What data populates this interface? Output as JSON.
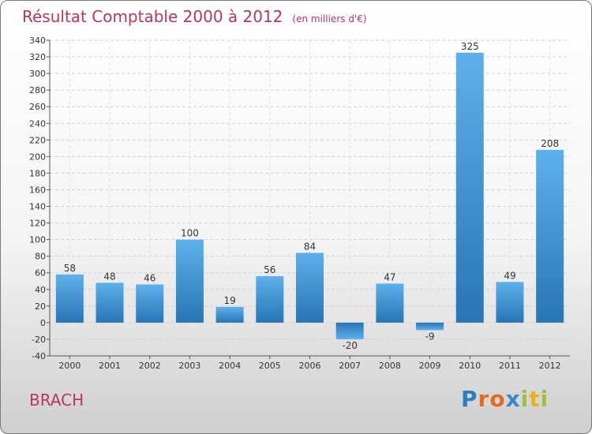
{
  "chart_data": {
    "type": "bar",
    "title": "Résultat Comptable 2000 à 2012",
    "subtitle": "(en milliers d'€)",
    "categories": [
      "2000",
      "2001",
      "2002",
      "2003",
      "2004",
      "2005",
      "2006",
      "2007",
      "2008",
      "2009",
      "2010",
      "2011",
      "2012"
    ],
    "values": [
      58,
      48,
      46,
      100,
      19,
      56,
      84,
      -20,
      47,
      -9,
      325,
      49,
      208
    ],
    "ylim": [
      -40,
      340
    ],
    "yticks": [
      -40,
      -20,
      0,
      20,
      40,
      60,
      80,
      100,
      120,
      140,
      160,
      180,
      200,
      220,
      240,
      260,
      280,
      300,
      320,
      340
    ],
    "grid": true,
    "xlabel": "",
    "ylabel": "",
    "bar_color": "#3a8fd6"
  },
  "location_name": "BRACH",
  "brand": {
    "logo_text": [
      "P",
      "r",
      "o",
      "x",
      "i",
      "t",
      "i"
    ]
  },
  "colors": {
    "title": "#b8365f"
  }
}
